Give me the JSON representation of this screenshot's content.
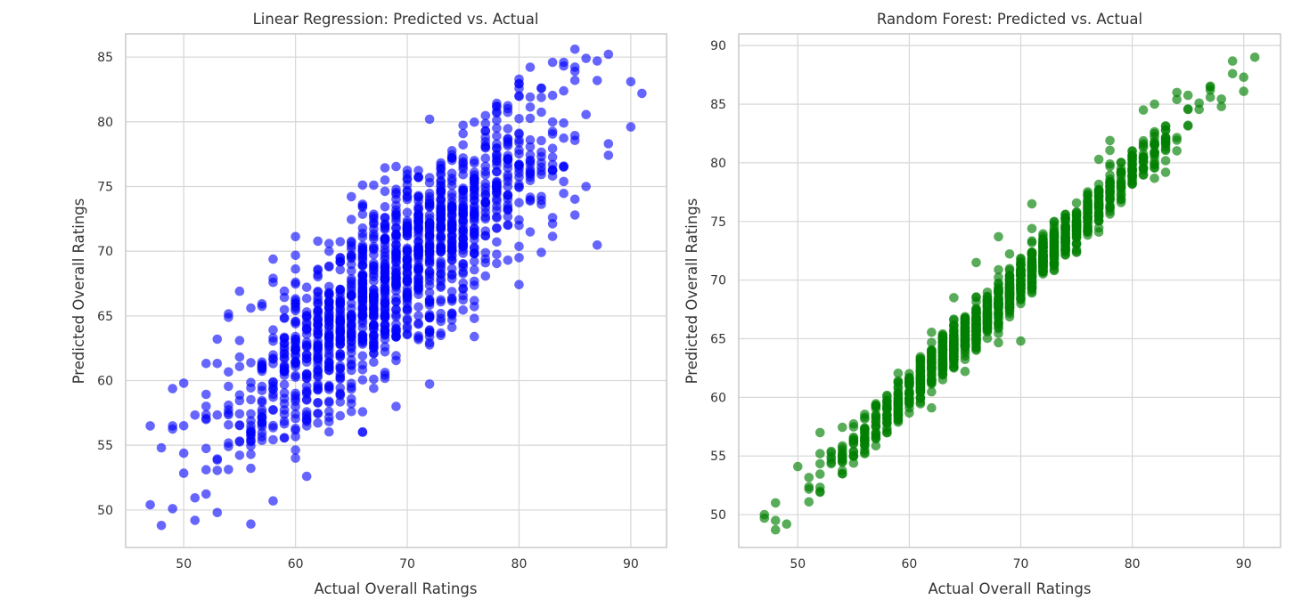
{
  "chart_data": [
    {
      "type": "scatter",
      "title": "Linear Regression: Predicted vs. Actual",
      "xlabel": "Actual Overall Ratings",
      "ylabel": "Predicted Overall Ratings",
      "xlim": [
        44.8,
        93.2
      ],
      "ylim": [
        47.1,
        86.8
      ],
      "xticks": [
        50,
        60,
        70,
        80,
        90
      ],
      "yticks": [
        50,
        55,
        60,
        65,
        70,
        75,
        80,
        85
      ],
      "grid": true,
      "color": "#0000ff",
      "alpha": 0.6,
      "trend": {
        "slope": 0.72,
        "intercept": 18.6,
        "spread": 3.4,
        "x_range": [
          47,
          91
        ],
        "n": 1400,
        "seed": 7
      },
      "points": [
        [
          47,
          56.5
        ],
        [
          47,
          50.4
        ],
        [
          48,
          48.8
        ],
        [
          48,
          54.8
        ],
        [
          49,
          56.5
        ],
        [
          49,
          50.1
        ],
        [
          50,
          59.8
        ],
        [
          51,
          49.2
        ],
        [
          53,
          49.8
        ],
        [
          53,
          63.2
        ],
        [
          58,
          50.7
        ],
        [
          61,
          52.6
        ],
        [
          56,
          65.6
        ],
        [
          58,
          67.9
        ],
        [
          66,
          56.0
        ],
        [
          76,
          64.8
        ],
        [
          79,
          69.3
        ],
        [
          80,
          69.5
        ],
        [
          82,
          69.9
        ],
        [
          83,
          84.6
        ],
        [
          84,
          84.6
        ],
        [
          86,
          84.9
        ],
        [
          87,
          84.7
        ],
        [
          85,
          83.2
        ],
        [
          90,
          83.1
        ],
        [
          91,
          82.2
        ],
        [
          90,
          79.6
        ],
        [
          88,
          78.3
        ],
        [
          83,
          72.6
        ],
        [
          85,
          72.8
        ],
        [
          86,
          75.0
        ],
        [
          80,
          82.0
        ],
        [
          82,
          82.6
        ]
      ]
    },
    {
      "type": "scatter",
      "title": "Random Forest: Predicted vs. Actual",
      "xlabel": "Actual Overall Ratings",
      "ylabel": "Predicted Overall Ratings",
      "xlim": [
        44.7,
        93.3
      ],
      "ylim": [
        47.2,
        91.0
      ],
      "xticks": [
        50,
        60,
        70,
        80,
        90
      ],
      "yticks": [
        50,
        55,
        60,
        65,
        70,
        75,
        80,
        85,
        90
      ],
      "grid": true,
      "color": "#008000",
      "alpha": 0.65,
      "trend": {
        "slope": 0.935,
        "intercept": 4.55,
        "spread": 1.0,
        "x_range": [
          47,
          90
        ],
        "n": 1300,
        "seed": 11
      },
      "points": [
        [
          47,
          49.7
        ],
        [
          47,
          50.0
        ],
        [
          48,
          48.7
        ],
        [
          48,
          49.5
        ],
        [
          48,
          51.0
        ],
        [
          49,
          49.2
        ],
        [
          50,
          54.1
        ],
        [
          52,
          57.0
        ],
        [
          62,
          59.1
        ],
        [
          70,
          64.8
        ],
        [
          64,
          68.5
        ],
        [
          66,
          71.5
        ],
        [
          71,
          76.5
        ],
        [
          68,
          73.7
        ],
        [
          77,
          80.3
        ],
        [
          78,
          81.9
        ],
        [
          81,
          84.5
        ],
        [
          82,
          85.0
        ],
        [
          84,
          85.4
        ],
        [
          87,
          86.2
        ],
        [
          88,
          84.8
        ],
        [
          89,
          87.6
        ],
        [
          90,
          87.3
        ],
        [
          90,
          86.1
        ],
        [
          91,
          89.0
        ]
      ]
    }
  ]
}
